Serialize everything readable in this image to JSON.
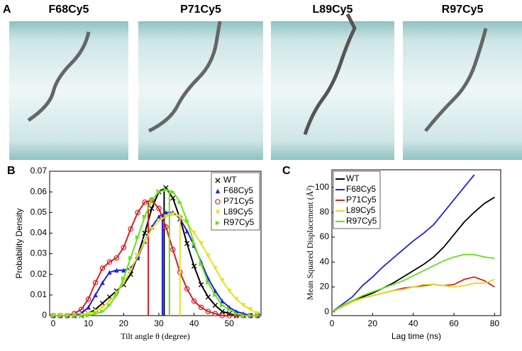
{
  "figure": {
    "panel_a": {
      "label": "A",
      "snapshots": [
        "F68Cy5",
        "P71Cy5",
        "L89Cy5",
        "R97Cy5"
      ]
    }
  },
  "chart_data": [
    {
      "type": "line",
      "label": "B",
      "x_label": "Tilt angle θ (degree)",
      "y_label": "Probability Density",
      "x": [
        0,
        2,
        4,
        6,
        8,
        10,
        12,
        14,
        16,
        18,
        20,
        22,
        24,
        26,
        28,
        30,
        32,
        34,
        36,
        38,
        40,
        42,
        44,
        46,
        48,
        50,
        52,
        54,
        56,
        58
      ],
      "xlim": [
        -1,
        59
      ],
      "xticks": [
        0,
        10,
        20,
        30,
        40,
        50
      ],
      "ylim": [
        0,
        0.07
      ],
      "yticks": [
        0,
        0.01,
        0.02,
        0.03,
        0.04,
        0.05,
        0.06,
        0.07
      ],
      "legend": "upper-right",
      "series": [
        {
          "name": "WT",
          "color": "#000000",
          "marker": "x",
          "mean": 31.5,
          "values": [
            0,
            0,
            0,
            0,
            0,
            0.001,
            0.003,
            0.006,
            0.009,
            0.012,
            0.015,
            0.02,
            0.029,
            0.04,
            0.052,
            0.06,
            0.062,
            0.057,
            0.047,
            0.035,
            0.024,
            0.015,
            0.009,
            0.005,
            0.002,
            0.001,
            0,
            0,
            0,
            0
          ]
        },
        {
          "name": "F68Cy5",
          "color": "#1f1fe0",
          "marker": "triangle-up",
          "mean": 31,
          "values": [
            0,
            0,
            0,
            0,
            0.001,
            0.004,
            0.01,
            0.016,
            0.021,
            0.022,
            0.022,
            0.023,
            0.028,
            0.036,
            0.043,
            0.048,
            0.05,
            0.05,
            0.047,
            0.041,
            0.034,
            0.026,
            0.018,
            0.012,
            0.007,
            0.004,
            0.002,
            0.001,
            0,
            0
          ]
        },
        {
          "name": "P71Cy5",
          "color": "#d42020",
          "marker": "circle",
          "mean": 27,
          "values": [
            0,
            0,
            0,
            0.001,
            0.003,
            0.008,
            0.016,
            0.023,
            0.026,
            0.028,
            0.033,
            0.042,
            0.05,
            0.055,
            0.056,
            0.052,
            0.043,
            0.032,
            0.021,
            0.013,
            0.007,
            0.004,
            0.002,
            0.001,
            0,
            0,
            0,
            0,
            0,
            0
          ]
        },
        {
          "name": "L89Cy5",
          "color": "#e8e020",
          "marker": "triangle-down",
          "mean": 36,
          "values": [
            0,
            0,
            0,
            0,
            0,
            0.001,
            0.002,
            0.004,
            0.007,
            0.011,
            0.016,
            0.022,
            0.029,
            0.036,
            0.042,
            0.046,
            0.048,
            0.049,
            0.048,
            0.045,
            0.04,
            0.035,
            0.029,
            0.023,
            0.017,
            0.012,
            0.008,
            0.005,
            0.003,
            0.001
          ]
        },
        {
          "name": "R97Cy5",
          "color": "#66e020",
          "marker": "triangle-right",
          "mean": 33,
          "values": [
            0,
            0,
            0,
            0,
            0,
            0,
            0.001,
            0.002,
            0.005,
            0.01,
            0.018,
            0.028,
            0.038,
            0.048,
            0.056,
            0.06,
            0.061,
            0.06,
            0.055,
            0.046,
            0.035,
            0.025,
            0.016,
            0.01,
            0.005,
            0.003,
            0.001,
            0,
            0,
            0
          ]
        }
      ]
    },
    {
      "type": "line",
      "label": "C",
      "x_label": "Lag time (ns)",
      "y_label": "Mean Squared Displacement (Å²)",
      "x": [
        0,
        5,
        10,
        15,
        20,
        25,
        30,
        35,
        40,
        45,
        50,
        55,
        60,
        65,
        70,
        75,
        80
      ],
      "xlim": [
        0,
        83
      ],
      "xticks": [
        0,
        20,
        40,
        60,
        80
      ],
      "ylim": [
        -3,
        114
      ],
      "yticks": [
        0,
        20,
        40,
        60,
        80,
        100
      ],
      "legend": "upper-left",
      "series": [
        {
          "name": "WT",
          "color": "#000000",
          "values": [
            0,
            4,
            8,
            12,
            15,
            19,
            23,
            28,
            33,
            38,
            44,
            52,
            62,
            72,
            80,
            87,
            92
          ]
        },
        {
          "name": "F68Cy5",
          "color": "#2020e0",
          "values": [
            0,
            6,
            12,
            21,
            28,
            36,
            43,
            50,
            57,
            63,
            70,
            80,
            90,
            100,
            110,
            null,
            null
          ]
        },
        {
          "name": "P71Cy5",
          "color": "#d42020",
          "values": [
            0,
            5,
            9,
            11,
            13,
            15,
            17,
            19,
            20,
            21,
            22,
            21,
            22,
            26,
            28,
            25,
            20
          ]
        },
        {
          "name": "L89Cy5",
          "color": "#e8d820",
          "values": [
            0,
            4,
            8,
            11,
            13,
            15,
            17,
            18,
            20,
            22,
            22,
            21,
            20,
            21,
            23,
            23,
            26
          ]
        },
        {
          "name": "R97Cy5",
          "color": "#66e020",
          "values": [
            0,
            5,
            9,
            13,
            16,
            19,
            22,
            25,
            29,
            33,
            37,
            41,
            44,
            46,
            46,
            44,
            43
          ]
        }
      ]
    }
  ]
}
